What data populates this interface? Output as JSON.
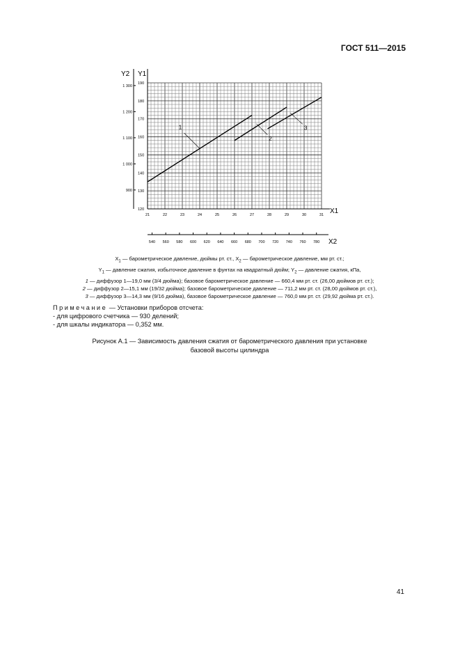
{
  "header": {
    "doc_id": "ГОСТ 511—2015"
  },
  "chart_data": {
    "type": "line",
    "x_axis_primary": {
      "label": "X1",
      "ticks": [
        21,
        22,
        23,
        24,
        25,
        26,
        27,
        28,
        29,
        30,
        31
      ],
      "range": [
        21,
        31
      ]
    },
    "x_axis_secondary": {
      "label": "X2",
      "ticks": [
        540,
        560,
        580,
        600,
        620,
        640,
        660,
        680,
        700,
        720,
        740,
        760,
        780
      ]
    },
    "y_axis_primary": {
      "label": "Y1",
      "ticks": [
        120,
        130,
        140,
        150,
        160,
        170,
        180,
        190
      ],
      "range": [
        120,
        190
      ]
    },
    "y_axis_secondary": {
      "label": "Y2",
      "ticks": [
        "900",
        "1 000",
        "1 100",
        "1 200",
        "1 300"
      ],
      "values": [
        900,
        1000,
        1100,
        1200,
        1300
      ]
    },
    "grid": true,
    "series": [
      {
        "name": "1",
        "points": [
          [
            21,
            135
          ],
          [
            27,
            172
          ]
        ]
      },
      {
        "name": "2",
        "points": [
          [
            26,
            158
          ],
          [
            29,
            176.5
          ]
        ]
      },
      {
        "name": "3",
        "points": [
          [
            27.9,
            164.5
          ],
          [
            31,
            182
          ]
        ]
      }
    ]
  },
  "legend": {
    "lines": [
      [
        "X",
        "1",
        " — барометрическое давление, дюймы рт. ст., X",
        "2",
        " — барометрическое давление, мм рт. ст.;"
      ],
      [
        "Y",
        "1",
        " — давление сжатия, избыточное давление в фунтах на квадратный дюйм; Y",
        "2",
        " — давление сжатия, кПа,"
      ]
    ],
    "items": [
      {
        "num": "1",
        "text": " — диффузор 1—19,0 мм (3/4 дюйма); базовое барометрическое давление — 660,4 мм рт. ст. (26,00 дюймов рт. ст.);"
      },
      {
        "num": "2",
        "text": " — диффузор 2—15,1 мм (19/32 дюйма); базовое барометрическое давление — 711,2 мм рт. ст. (28,00 дюймов рт. ст.),"
      },
      {
        "num": "3",
        "text": " — диффузор 3—14,3 мм (9/16 дюйма), базовое барометрическое давление — 760,0 мм рт. ст. (29,92 дюйма рт. ст.)."
      }
    ]
  },
  "note": {
    "title": "Примечание",
    "intro": " — Установки приборов отсчета:",
    "items": [
      "- для цифрового счетчика — 930 делений;",
      "- для шкалы индикатора — 0,352 мм."
    ]
  },
  "caption": {
    "line1": "Рисунок А.1 — Зависимость давления сжатия от барометрического давления при установке",
    "line2": "базовой высоты цилиндра"
  },
  "page_number": "41"
}
